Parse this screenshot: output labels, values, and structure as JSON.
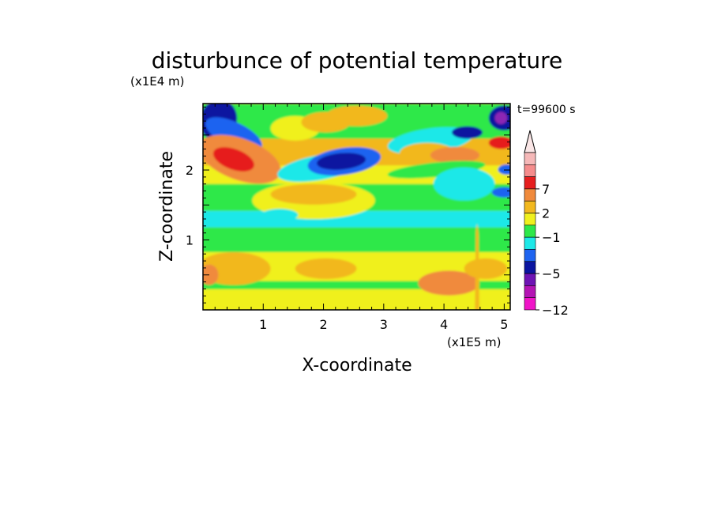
{
  "chart_data": {
    "type": "heatmap",
    "title": "disturbunce of potential temperature",
    "xlabel": "X-coordinate",
    "ylabel": "Z-coordinate",
    "x_unit": "(x1E5 m)",
    "y_unit": "(x1E4 m)",
    "time_label": "t=99600 s",
    "xlim": [
      0,
      5.1
    ],
    "ylim": [
      0,
      2.95
    ],
    "x_ticks": [
      1,
      2,
      3,
      4,
      5
    ],
    "y_ticks": [
      1,
      2
    ],
    "colorbar": {
      "tick_labels": [
        {
          "level": 7,
          "text": "7"
        },
        {
          "level": 2,
          "text": "2"
        },
        {
          "level": -1,
          "text": "−1"
        },
        {
          "level": -5,
          "text": "−5"
        },
        {
          "level": -12,
          "text": "−12"
        }
      ],
      "bands": [
        {
          "color": "#f5b8b8"
        },
        {
          "color": "#f58c8c"
        },
        {
          "color": "#e61e1e"
        },
        {
          "color": "#f08a3c"
        },
        {
          "color": "#f2b81e"
        },
        {
          "color": "#f0f01e"
        },
        {
          "color": "#2ee84a"
        },
        {
          "color": "#1ee8e8"
        },
        {
          "color": "#1e64f0"
        },
        {
          "color": "#0a14a0"
        },
        {
          "color": "#6e14b4"
        },
        {
          "color": "#b414b4"
        },
        {
          "color": "#f014c8"
        }
      ]
    },
    "field_colors": {
      "deep_red": "#e61e1e",
      "orange": "#f08a3c",
      "gold": "#f2b81e",
      "yellow": "#f0f01e",
      "green": "#2ee84a",
      "cyan": "#1ee8e8",
      "blue": "#1e64f0",
      "navy": "#0a14a0",
      "purple": "#8c28b4",
      "magenta": "#b414b4"
    }
  }
}
